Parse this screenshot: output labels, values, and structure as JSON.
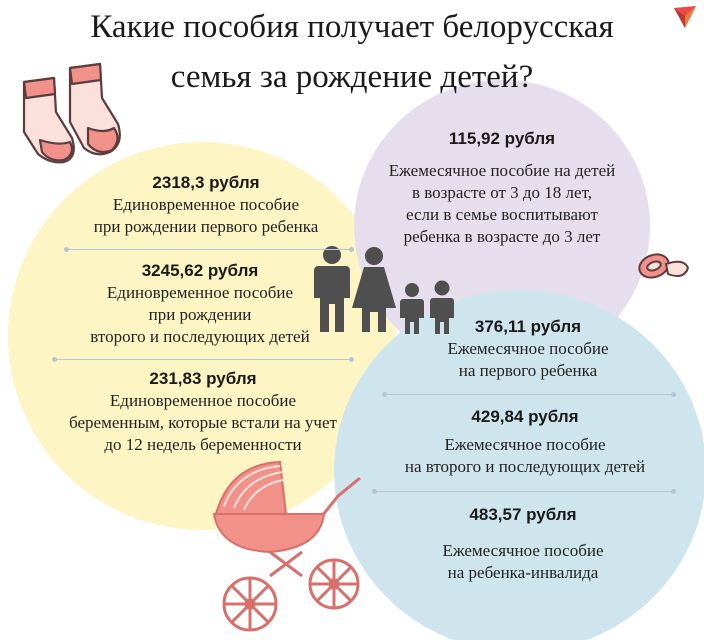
{
  "title": {
    "line1": "Какие пособия получает белорусская",
    "line2": "семья за рождение детей?"
  },
  "yellow_items": [
    {
      "amount": "2318,3 рубля",
      "lines": [
        "Единовременное пособие",
        "при рождении первого ребенка"
      ]
    },
    {
      "amount": "3245,62 рубля",
      "lines": [
        "Единовременное пособие",
        "при рождении",
        "второго и последующих детей"
      ]
    },
    {
      "amount": "231,83 рубля",
      "lines": [
        "Единовременное пособие",
        "беременным, которые встали на учет",
        "до 12 недель беременности"
      ]
    }
  ],
  "purple_item": {
    "amount": "115,92 рубля",
    "lines": [
      "Ежемесячное пособие на детей",
      "в возрасте от 3 до 18 лет,",
      "если в семье воспитывают",
      "ребенка в возрасте до 3 лет"
    ]
  },
  "blue_items": [
    {
      "amount": "376,11 рубля",
      "lines": [
        "Ежемесячное пособие",
        "на первого ребенка"
      ]
    },
    {
      "amount": "429,84 рубля",
      "lines": [
        "Ежемесячное пособие",
        "на второго и последующих детей"
      ]
    },
    {
      "amount": "483,57 рубля",
      "lines": [
        "Ежемесячное пособие",
        "на ребенка-инвалида"
      ]
    }
  ],
  "colors": {
    "yellow_circle": "#fdf5c4",
    "purple_circle": "#e6deec",
    "blue_circle": "#cfe5ee",
    "accent_pink": "#f2908a",
    "family_gray": "#4f4f4f"
  },
  "icons": [
    "booties-icon",
    "family-icon",
    "pacifier-icon",
    "stroller-icon",
    "logo-icon"
  ]
}
